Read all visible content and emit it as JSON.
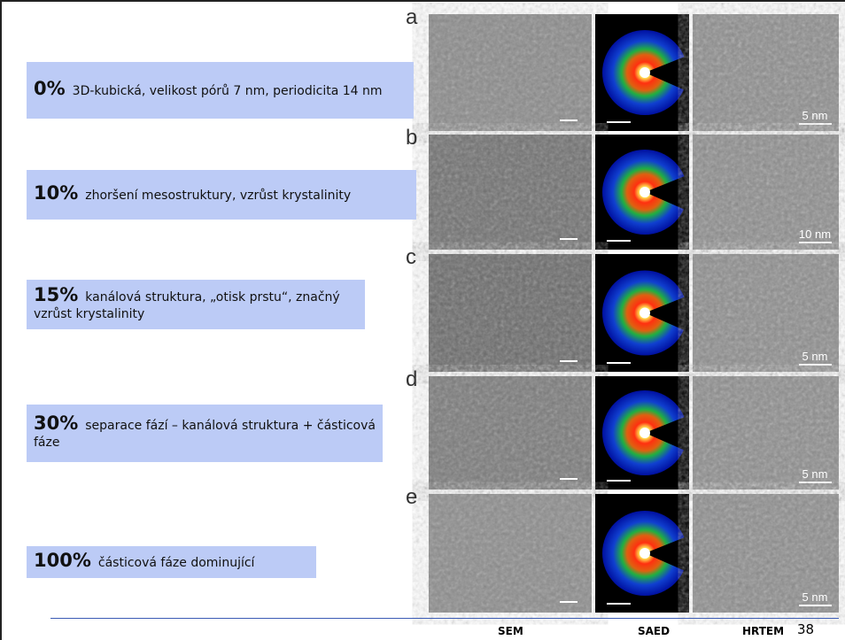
{
  "rows": [
    {
      "percent": "0%",
      "text": "3D-kubická, velikost pórů 7 nm, periodicita 14 nm"
    },
    {
      "percent": "10%",
      "text": "zhoršení mesostruktury, vzrůst krystalinity"
    },
    {
      "percent": "15%",
      "text": "kanálová struktura, „otisk prstu“, značný vzrůst krystalinity"
    },
    {
      "percent": "30%",
      "text": "separace fází – kanálová struktura + částicová fáze"
    },
    {
      "percent": "100%",
      "text": "částicová fáze dominující"
    }
  ],
  "panels": [
    {
      "letter": "a",
      "hrtem_scale": "5 nm"
    },
    {
      "letter": "b",
      "hrtem_scale": "10 nm"
    },
    {
      "letter": "c",
      "hrtem_scale": "5 nm"
    },
    {
      "letter": "d",
      "hrtem_scale": "5 nm"
    },
    {
      "letter": "e",
      "hrtem_scale": "5 nm"
    }
  ],
  "columns": [
    "SEM",
    "SAED",
    "HRTEM"
  ],
  "page_number": "38"
}
